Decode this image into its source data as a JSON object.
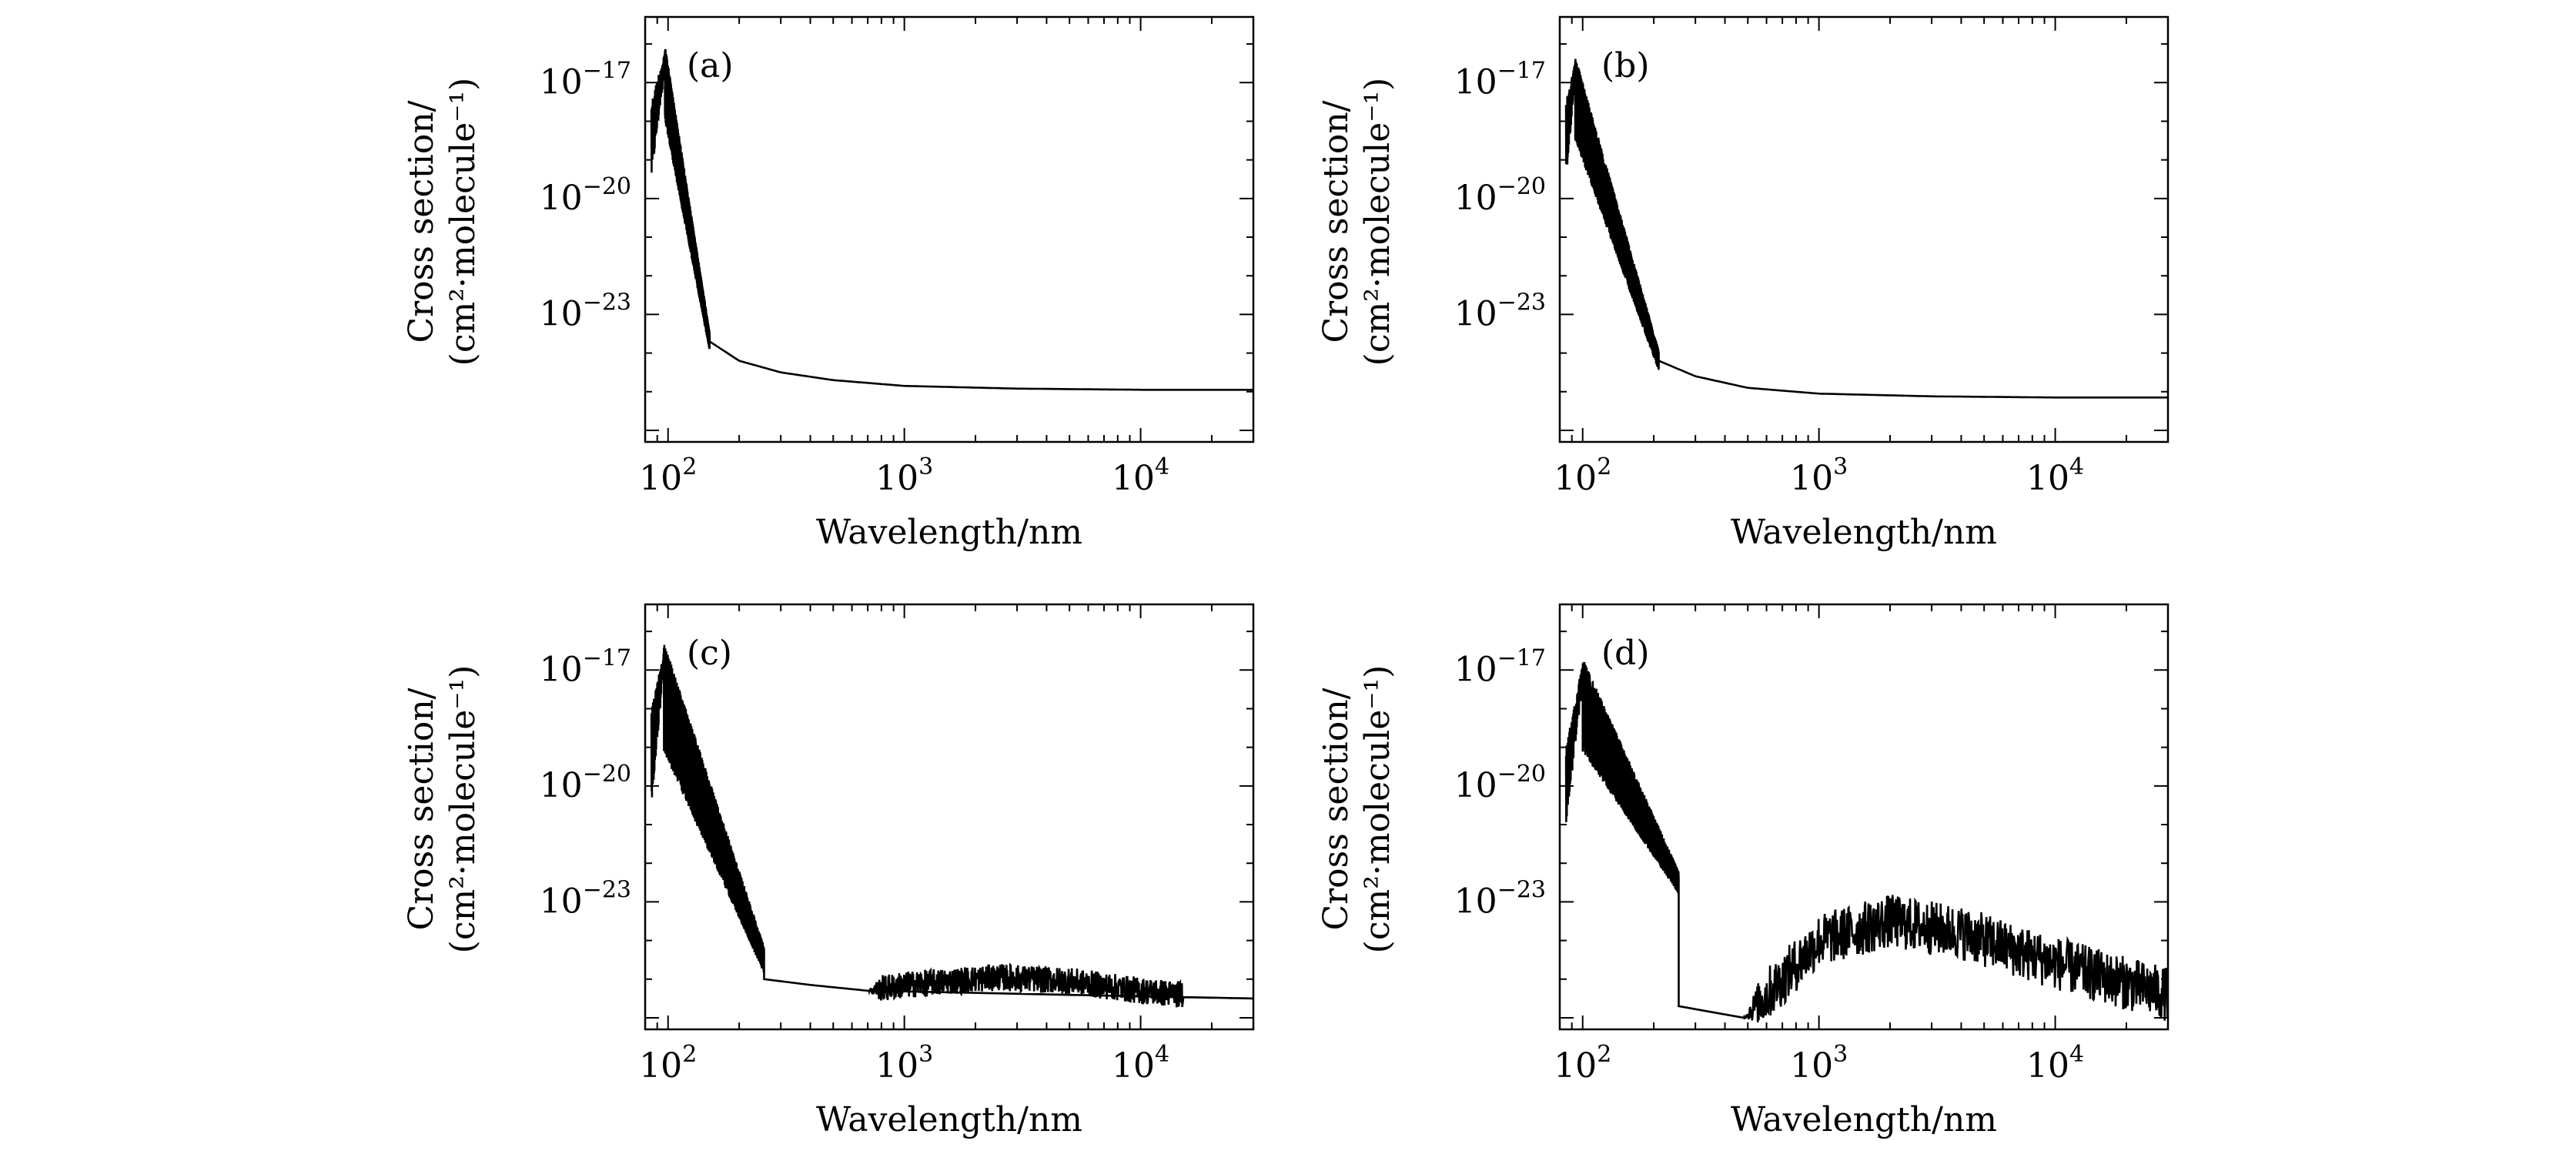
{
  "chart_data": [
    {
      "type": "line",
      "panel_label": "(a)",
      "xlabel": "Wavelength/nm",
      "ylabel_line1": "Cross section/",
      "ylabel_line2": "(cm²·molecule⁻¹)",
      "xscale": "log",
      "yscale": "log",
      "xlim": [
        80,
        30000
      ],
      "ylim_exp": [
        -26.3,
        -15.3
      ],
      "x_ticks": [
        {
          "base": "10",
          "exp": "2"
        },
        {
          "base": "10",
          "exp": "3"
        },
        {
          "base": "10",
          "exp": "4"
        }
      ],
      "y_ticks": [
        {
          "base": "10",
          "exp": "−17"
        },
        {
          "base": "10",
          "exp": "−20"
        },
        {
          "base": "10",
          "exp": "−23"
        }
      ],
      "band": {
        "x_start": 85,
        "x_peak": 97,
        "x_end": 150,
        "peak_exp": -16.1,
        "onset_upper_exp": -17.5,
        "onset_lower_exp": -19.5,
        "end_exp": -23.7,
        "amplitude_dex": 1.8
      },
      "envelope": [
        [
          150,
          -23.7
        ],
        [
          200,
          -24.2
        ],
        [
          300,
          -24.5
        ],
        [
          500,
          -24.7
        ],
        [
          1000,
          -24.85
        ],
        [
          3000,
          -24.92
        ],
        [
          10000,
          -24.95
        ],
        [
          30000,
          -24.95
        ]
      ],
      "secondary": null
    },
    {
      "type": "line",
      "panel_label": "(b)",
      "xlabel": "Wavelength/nm",
      "ylabel_line1": "Cross section/",
      "ylabel_line2": "(cm²·molecule⁻¹)",
      "xscale": "log",
      "yscale": "log",
      "xlim": [
        80,
        30000
      ],
      "ylim_exp": [
        -26.3,
        -15.3
      ],
      "x_ticks": [
        {
          "base": "10",
          "exp": "2"
        },
        {
          "base": "10",
          "exp": "3"
        },
        {
          "base": "10",
          "exp": "4"
        }
      ],
      "y_ticks": [
        {
          "base": "10",
          "exp": "−17"
        },
        {
          "base": "10",
          "exp": "−20"
        },
        {
          "base": "10",
          "exp": "−23"
        }
      ],
      "band": {
        "x_start": 85,
        "x_peak": 93,
        "x_end": 210,
        "peak_exp": -16.4,
        "onset_upper_exp": -17.5,
        "onset_lower_exp": -19.5,
        "end_exp": -24.2,
        "amplitude_dex": 2.0
      },
      "envelope": [
        [
          210,
          -24.2
        ],
        [
          300,
          -24.6
        ],
        [
          500,
          -24.9
        ],
        [
          1000,
          -25.05
        ],
        [
          3000,
          -25.12
        ],
        [
          10000,
          -25.15
        ],
        [
          30000,
          -25.15
        ]
      ],
      "secondary": null
    },
    {
      "type": "line",
      "panel_label": "(c)",
      "xlabel": "Wavelength/nm",
      "ylabel_line1": "Cross section/",
      "ylabel_line2": "(cm²·molecule⁻¹)",
      "xscale": "log",
      "yscale": "log",
      "xlim": [
        80,
        30000
      ],
      "ylim_exp": [
        -26.3,
        -15.3
      ],
      "x_ticks": [
        {
          "base": "10",
          "exp": "2"
        },
        {
          "base": "10",
          "exp": "3"
        },
        {
          "base": "10",
          "exp": "4"
        }
      ],
      "y_ticks": [
        {
          "base": "10",
          "exp": "−17"
        },
        {
          "base": "10",
          "exp": "−20"
        },
        {
          "base": "10",
          "exp": "−23"
        }
      ],
      "band": {
        "x_start": 85,
        "x_peak": 96,
        "x_end": 255,
        "peak_exp": -16.4,
        "onset_upper_exp": -18.0,
        "onset_lower_exp": -20.5,
        "end_exp": -24.5,
        "amplitude_dex": 2.6
      },
      "envelope": [
        [
          255,
          -25.0
        ],
        [
          400,
          -25.15
        ],
        [
          700,
          -25.3
        ],
        [
          1000,
          -25.3
        ],
        [
          3000,
          -25.3
        ],
        [
          10000,
          -25.45
        ],
        [
          30000,
          -25.5
        ]
      ],
      "secondary": {
        "x_start": 700,
        "x_end": 15000,
        "points": [
          [
            700,
            -25.3
          ],
          [
            1000,
            -25.15
          ],
          [
            2500,
            -24.95
          ],
          [
            5000,
            -25.05
          ],
          [
            10000,
            -25.3
          ],
          [
            15000,
            -25.4
          ]
        ],
        "amplitude_dex": 0.35
      }
    },
    {
      "type": "line",
      "panel_label": "(d)",
      "xlabel": "Wavelength/nm",
      "ylabel_line1": "Cross section/",
      "ylabel_line2": "(cm²·molecule⁻¹)",
      "xscale": "log",
      "yscale": "log",
      "xlim": [
        80,
        30000
      ],
      "ylim_exp": [
        -26.3,
        -15.3
      ],
      "x_ticks": [
        {
          "base": "10",
          "exp": "2"
        },
        {
          "base": "10",
          "exp": "3"
        },
        {
          "base": "10",
          "exp": "4"
        }
      ],
      "y_ticks": [
        {
          "base": "10",
          "exp": "−17"
        },
        {
          "base": "10",
          "exp": "−20"
        },
        {
          "base": "10",
          "exp": "−23"
        }
      ],
      "band": {
        "x_start": 85,
        "x_peak": 100,
        "x_end": 255,
        "peak_exp": -16.8,
        "onset_upper_exp": -19.0,
        "onset_lower_exp": -21.0,
        "end_exp": -22.5,
        "amplitude_dex": 2.2
      },
      "envelope": [
        [
          255,
          -25.7
        ],
        [
          350,
          -25.85
        ],
        [
          480,
          -26.0
        ]
      ],
      "secondary": {
        "x_start": 480,
        "x_end": 30000,
        "points": [
          [
            480,
            -26.0
          ],
          [
            700,
            -25.0
          ],
          [
            1000,
            -24.0
          ],
          [
            2000,
            -23.5
          ],
          [
            4000,
            -23.8
          ],
          [
            8000,
            -24.4
          ],
          [
            15000,
            -24.9
          ],
          [
            30000,
            -25.4
          ]
        ],
        "amplitude_dex": 0.7
      }
    }
  ]
}
